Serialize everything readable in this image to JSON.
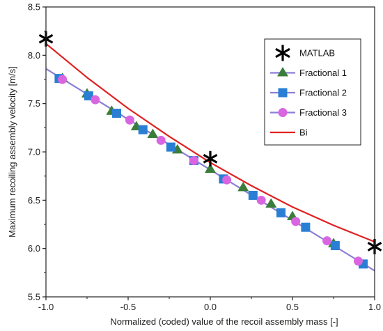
{
  "chart_data": {
    "type": "line",
    "title": "",
    "xlabel": "Normalized (coded) value of the recoil assembly mass [-]",
    "ylabel": "Maximum recoiling assembly velocity [m/s]",
    "xlim": [
      -1.0,
      1.0
    ],
    "ylim": [
      5.5,
      8.5
    ],
    "xticks": [
      -1.0,
      -0.5,
      0.0,
      0.5,
      1.0
    ],
    "xtick_labels": [
      "-1.0",
      "-0.5",
      "0.0",
      "0.5",
      "1.0"
    ],
    "yticks": [
      5.5,
      6.0,
      6.5,
      7.0,
      7.5,
      8.0,
      8.5
    ],
    "ytick_labels": [
      "5.5",
      "6.0",
      "6.5",
      "7.0",
      "7.5",
      "8.0",
      "8.5"
    ],
    "grid": false,
    "legend_position": "top-right",
    "series": [
      {
        "name": "MATLAB",
        "kind": "marker",
        "marker": "asterisk",
        "color": "#000000",
        "x": [
          -1.0,
          0.0,
          1.0
        ],
        "y": [
          8.17,
          6.93,
          6.02
        ]
      },
      {
        "name": "Fractional 1",
        "kind": "line+marker",
        "marker": "triangle",
        "color": "#3a7d3a",
        "x": [
          -0.9,
          -0.75,
          -0.6,
          -0.45,
          -0.35,
          -0.2,
          0.0,
          0.2,
          0.37,
          0.5,
          0.75
        ],
        "y": [
          7.76,
          7.6,
          7.42,
          7.26,
          7.18,
          7.02,
          6.82,
          6.63,
          6.46,
          6.33,
          6.05
        ]
      },
      {
        "name": "Fractional 2",
        "kind": "line+marker",
        "marker": "square",
        "color": "#2a7fd4",
        "x": [
          -0.92,
          -0.74,
          -0.57,
          -0.41,
          -0.24,
          -0.1,
          0.08,
          0.26,
          0.43,
          0.58,
          0.76,
          0.93
        ],
        "y": [
          7.76,
          7.58,
          7.4,
          7.23,
          7.05,
          6.91,
          6.72,
          6.55,
          6.37,
          6.22,
          6.03,
          5.84
        ]
      },
      {
        "name": "Fractional 3",
        "kind": "line+marker",
        "marker": "circle",
        "color": "#d966e0",
        "x": [
          -0.9,
          -0.7,
          -0.49,
          -0.3,
          -0.1,
          0.1,
          0.31,
          0.52,
          0.71,
          0.9
        ],
        "y": [
          7.75,
          7.54,
          7.33,
          7.12,
          6.91,
          6.71,
          6.5,
          6.28,
          6.08,
          5.87
        ]
      },
      {
        "name": "Bi",
        "kind": "line",
        "color": "#e02020",
        "x": [
          -1.0,
          -0.75,
          -0.5,
          -0.25,
          0.0,
          0.25,
          0.5,
          0.75,
          1.0
        ],
        "y": [
          8.12,
          7.77,
          7.45,
          7.16,
          6.89,
          6.65,
          6.43,
          6.24,
          6.07
        ]
      }
    ],
    "fit_line": {
      "color": "#8a7fd6",
      "x": [
        -1.0,
        1.0
      ],
      "y": [
        7.86,
        5.77
      ]
    }
  }
}
